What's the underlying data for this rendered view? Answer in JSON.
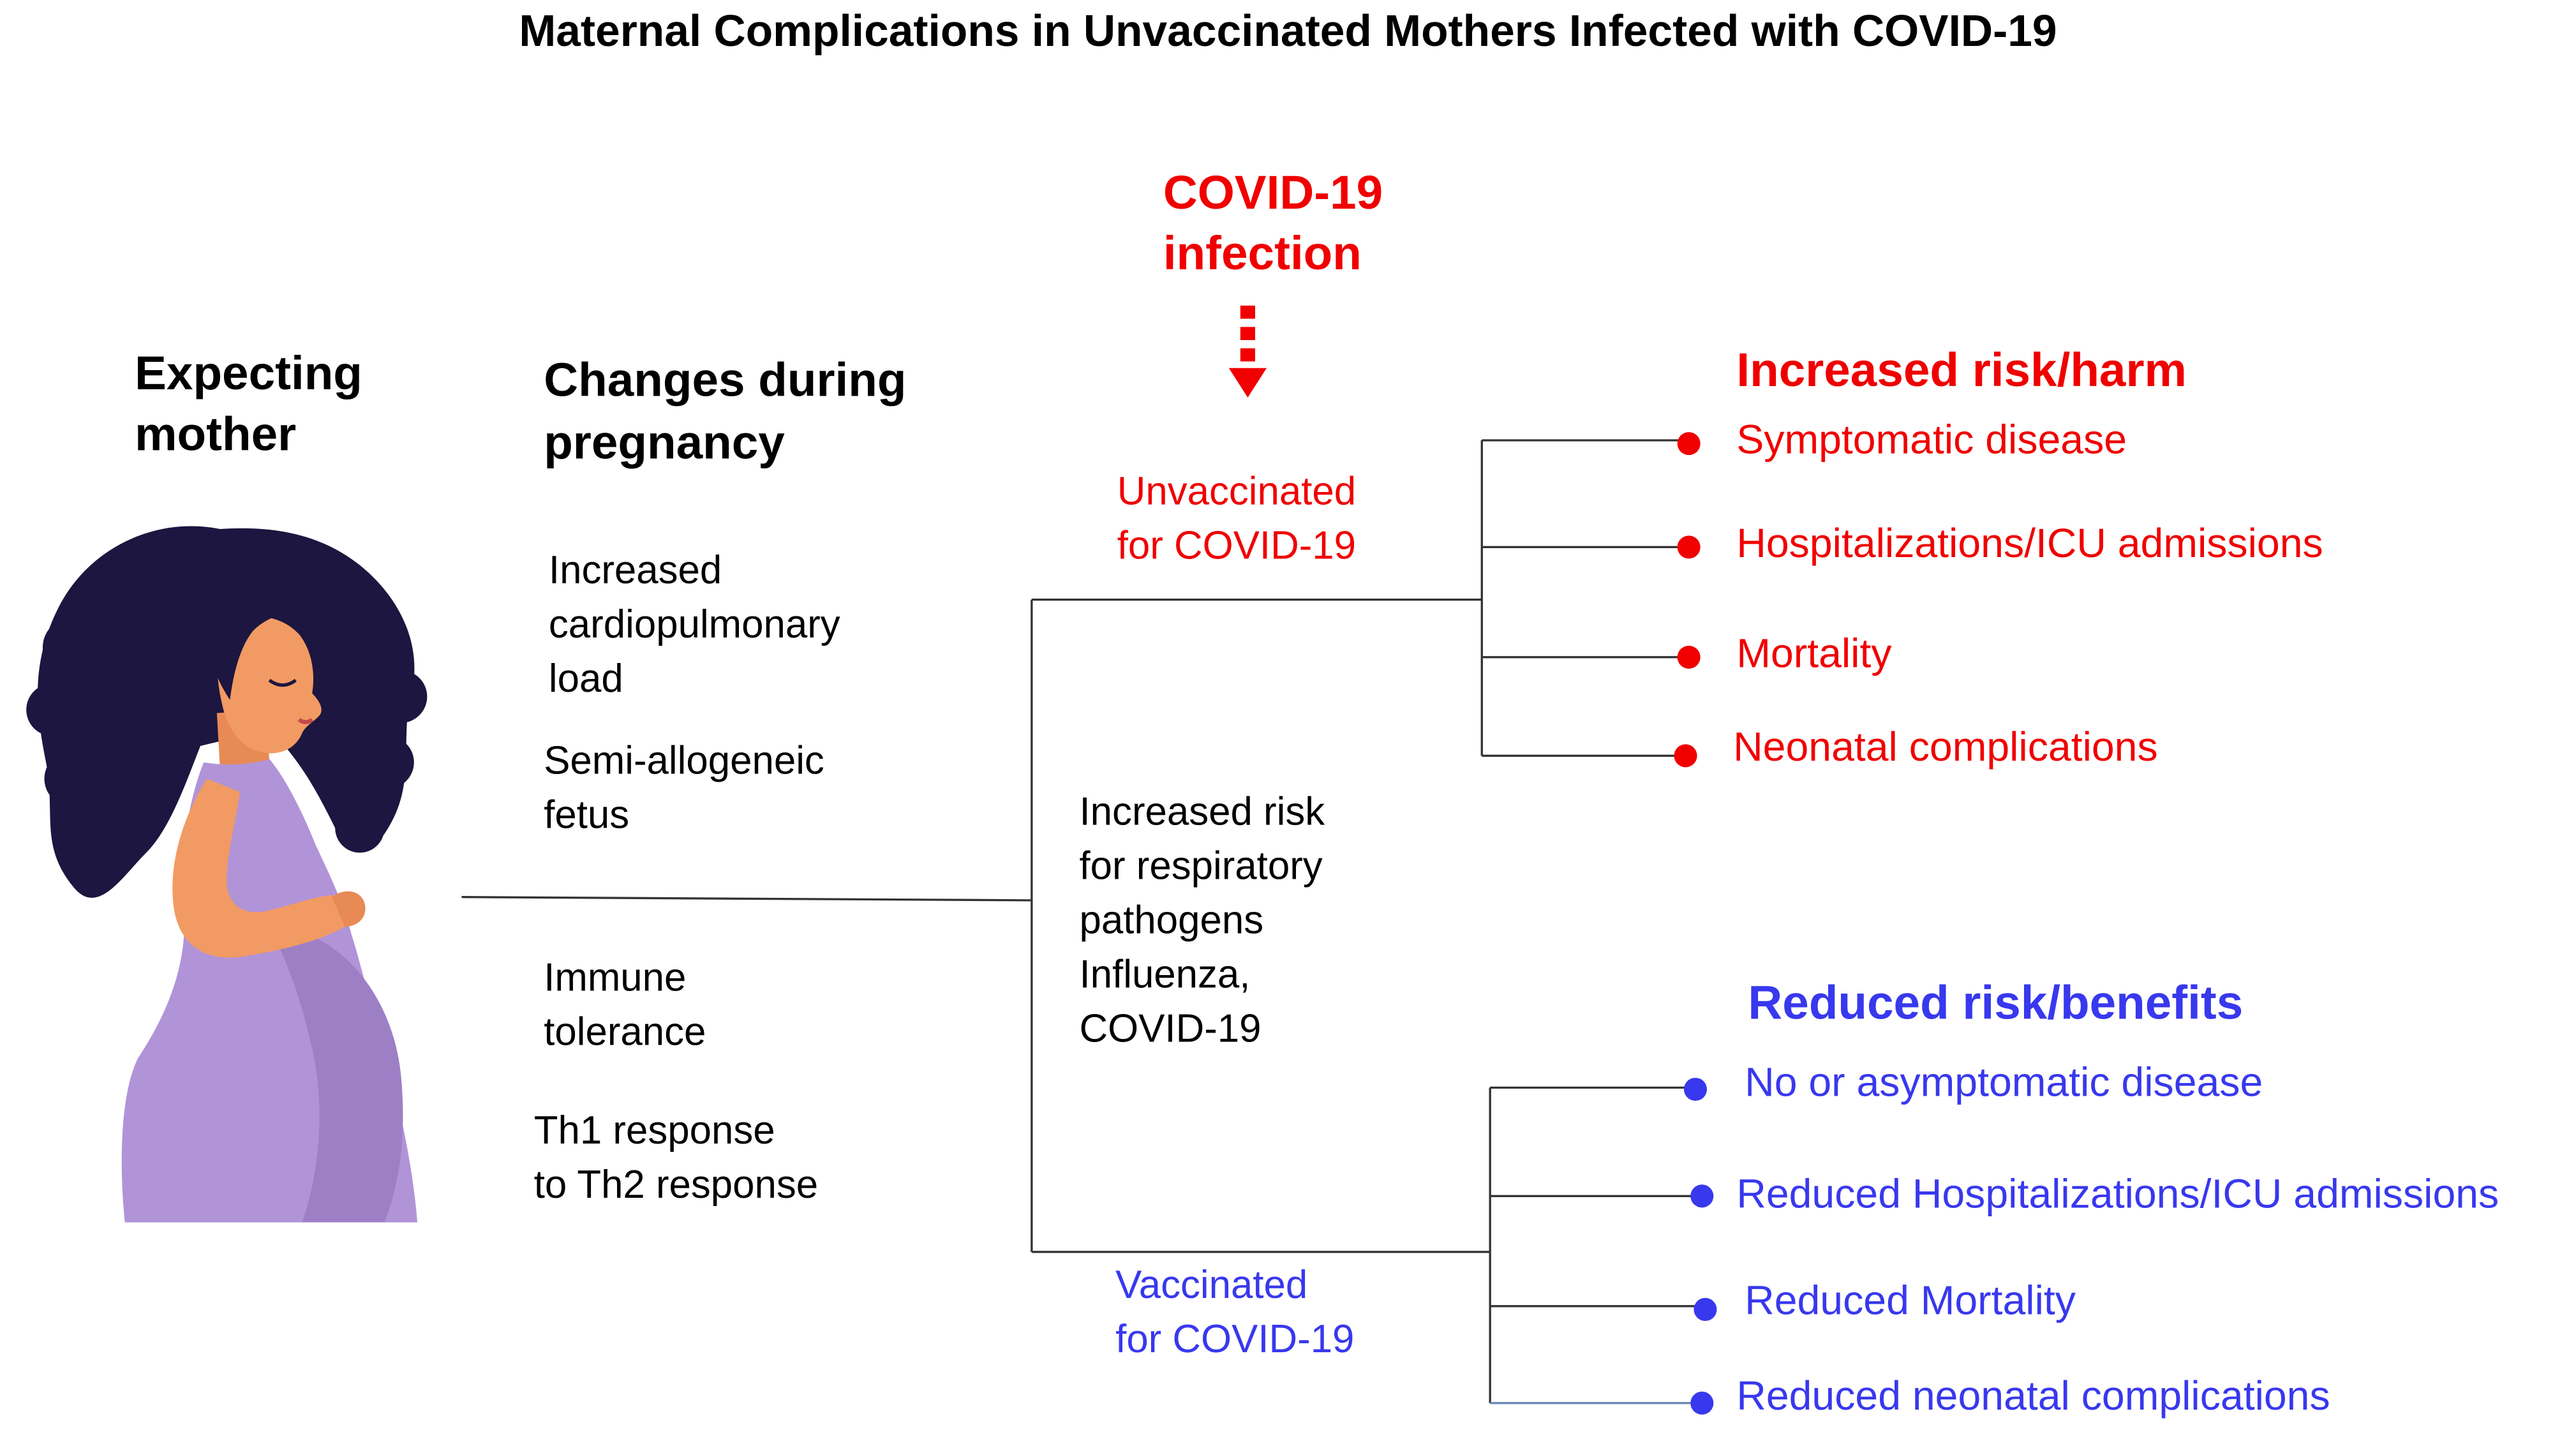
{
  "title": "Maternal Complications in Unvaccinated Mothers Infected with COVID-19",
  "mother": {
    "label": [
      "Expecting",
      "mother"
    ]
  },
  "changes": {
    "heading": [
      "Changes during",
      "pregnancy"
    ],
    "group1": [
      "Increased",
      "cardiopulmonary",
      "load"
    ],
    "group2": [
      "Semi-allogeneic",
      "fetus"
    ],
    "group3": [
      "Immune",
      "tolerance"
    ],
    "group4": [
      "Th1 response",
      "to Th2 response"
    ]
  },
  "infection": {
    "label": [
      "COVID-19",
      "infection"
    ]
  },
  "center": [
    "Increased  risk",
    "for respiratory",
    "pathogens",
    "Influenza,",
    "COVID-19"
  ],
  "unvaccinated": {
    "label": [
      "Unvaccinated",
      "for COVID-19"
    ]
  },
  "vaccinated": {
    "label": [
      "Vaccinated",
      "for COVID-19"
    ]
  },
  "harm": {
    "heading": "Increased risk/harm",
    "items": [
      "Symptomatic  disease",
      "Hospitalizations/ICU  admissions",
      "Mortality",
      "Neonatal  complications"
    ]
  },
  "benefit": {
    "heading": "Reduced risk/benefits",
    "items": [
      "No  or  asymptomatic  disease",
      "Reduced  Hospitalizations/ICU  admissions",
      "Reduced  Mortality",
      "Reduced  neonatal  complications"
    ]
  },
  "colors": {
    "harm": "#f00000",
    "benefit": "#3838ee",
    "hair": "#1c1640",
    "skin": "#f29a63",
    "dress": "#b193d8"
  }
}
